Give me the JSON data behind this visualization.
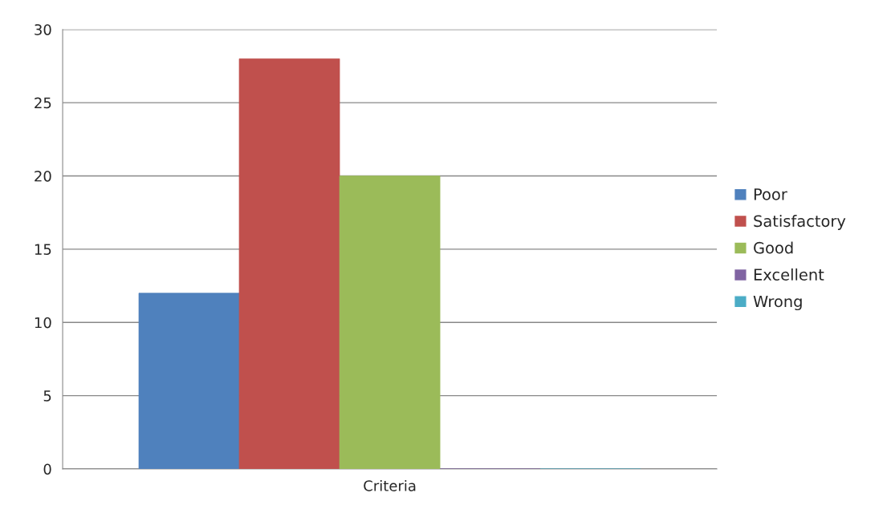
{
  "chart_data": {
    "type": "bar",
    "categories": [
      "Criteria"
    ],
    "series": [
      {
        "name": "Poor",
        "color": "#4f81bd",
        "values": [
          12
        ]
      },
      {
        "name": "Satisfactory",
        "color": "#c0504d",
        "values": [
          28
        ]
      },
      {
        "name": "Good",
        "color": "#9bbb59",
        "values": [
          20
        ]
      },
      {
        "name": "Excellent",
        "color": "#8064a2",
        "values": [
          0
        ]
      },
      {
        "name": "Wrong",
        "color": "#4bacc6",
        "values": [
          0
        ]
      }
    ],
    "ylim": [
      0,
      30
    ],
    "yticks": [
      0,
      5,
      10,
      15,
      20,
      25,
      30
    ],
    "grid": "y",
    "legend": "right"
  }
}
